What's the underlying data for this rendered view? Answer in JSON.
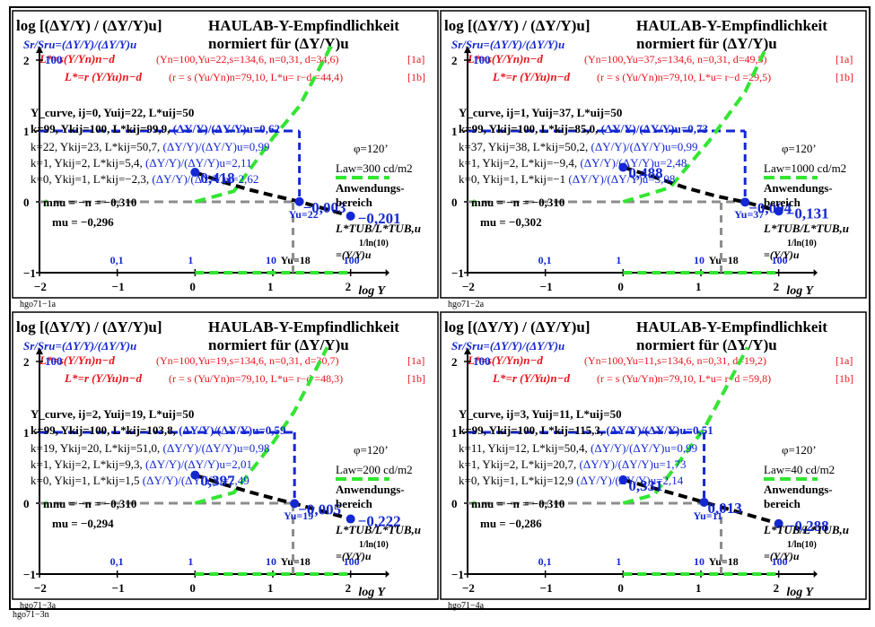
{
  "figure_label": "hgo71−3n",
  "colors": {
    "red": "#e8141c",
    "blue": "#1428d2",
    "green": "#32e632",
    "black": "#000000",
    "grey": "#8c8c8c"
  },
  "common": {
    "ylabel": "log [(ΔY/Y) / (ΔY/Y)u]",
    "title1": "HAULAB-Y-Empfindlichkeit",
    "title2": "normiert für (ΔY/Y)u",
    "sub": "Sr/Sru=(ΔY/Y)/(ΔY/Y)u",
    "eq1": "L*=s(Y/Yn)n−d",
    "eq2": "L*=r (Y/Yu)n−d",
    "tag1": "[1a]",
    "tag2": "[1b]",
    "mnu": "mnu = −n = −0,310",
    "phi": "φ=120’",
    "anw1": "Anwendungs-",
    "anw2": "bereich",
    "tub": "L*TUB/L*TUB,u",
    "tub2": "=(Y/Y)u",
    "tubexp": "1/ln(10)",
    "xlabel": "log Y",
    "k99": "k=99, Ykij=100, L*kij=",
    "ratio": "(ΔY/Y)/(ΔY/Y)u=",
    "yu_hi": "Yu=18",
    "y100": "100",
    "yaxis_100": "100"
  },
  "chart_data": [
    {
      "type": "line",
      "id": "hgo71-1a",
      "label": "hgo71−1a",
      "xlim": [
        -2,
        2.5
      ],
      "ylim": [
        -1,
        2.3
      ],
      "xticks": [
        -2,
        -1,
        0,
        1,
        2
      ],
      "yticks": [
        -1,
        0,
        1,
        2
      ],
      "xtick_labels": [
        "−2",
        "−1",
        "0",
        "1",
        "2"
      ],
      "ytick_labels": [
        "−1",
        "0",
        "1",
        "2"
      ],
      "top_scale": [
        {
          "x": -1,
          "text": "0,1"
        },
        {
          "x": 0,
          "text": "1"
        },
        {
          "x": 1,
          "text": "10"
        },
        {
          "x": 2,
          "text": "100"
        }
      ],
      "params1": "(Yn=100,Yu=22,s=134,6, n=0,31, d=34,6)",
      "params2": "(r = s (Yu/Yn)n=79,10, L*u= r−d =44,4)",
      "header": "Y_curve, ij=0, Yuij=22, L*uij=50",
      "lines": [
        {
          "pre": "k=99, Ykij=100, L*kij=99,9,",
          "val": "0,62"
        },
        {
          "pre": "k=22, Ykij=23, L*kij=50,7,",
          "val": "0,99"
        },
        {
          "pre": "k=1, Ykij=2, L*kij=5,4,",
          "val": "2,11"
        },
        {
          "pre": "k=0, Ykij=1, L*kij=−2,3,",
          "val": "2,62"
        }
      ],
      "lum": "Law=300 cd/m2",
      "mu": "mu = −0,296",
      "yu": "Yu=22",
      "log_yu": 1.342,
      "marker_left": {
        "x": 0.0,
        "y": 0.418,
        "text": "0,418"
      },
      "marker_mid": {
        "x": 1.342,
        "y": 0.003,
        "text": "−0,003"
      },
      "marker_right": {
        "x": 2.0,
        "y": -0.201,
        "text": "−0,201"
      },
      "black_curve": [
        [
          0.0,
          0.418
        ],
        [
          0.3,
          0.3
        ],
        [
          0.7,
          0.17
        ],
        [
          1.0,
          0.09
        ],
        [
          1.342,
          0.003
        ],
        [
          2.0,
          -0.201
        ]
      ],
      "green_curve": [
        [
          0.0,
          0.0
        ],
        [
          0.5,
          0.15
        ],
        [
          1.0,
          0.9
        ],
        [
          1.342,
          1.35
        ],
        [
          1.75,
          2.2
        ]
      ],
      "blue_hline": 1.0
    },
    {
      "type": "line",
      "id": "hgo71-2a",
      "label": "hgo71−2a",
      "xlim": [
        -2,
        2.5
      ],
      "ylim": [
        -1,
        2.3
      ],
      "xticks": [
        -2,
        -1,
        0,
        1,
        2
      ],
      "yticks": [
        -1,
        0,
        1,
        2
      ],
      "xtick_labels": [
        "−2",
        "−1",
        "0",
        "1",
        "2"
      ],
      "ytick_labels": [
        "−1",
        "0",
        "1",
        "2"
      ],
      "top_scale": [
        {
          "x": -1,
          "text": "0,1"
        },
        {
          "x": 0,
          "text": "1"
        },
        {
          "x": 1,
          "text": "10"
        },
        {
          "x": 2,
          "text": "100"
        }
      ],
      "params1": "(Yn=100,Yu=37,s=134,6, n=0,31, d=49,5)",
      "params2": "(r = s (Yu/Yn)n=79,10, L*u= r−d =29,5)",
      "header": "Y_curve, ij=1, Yuij=37, L*uij=50",
      "lines": [
        {
          "pre": "k=99, Ykij=100, L*kij=85,0,",
          "val": "0,73"
        },
        {
          "pre": "k=37, Ykij=38, L*kij=50,2,",
          "val": "0,99"
        },
        {
          "pre": "k=1, Ykij=2, L*kij=−9,4,",
          "val": "2,48"
        },
        {
          "pre": "k=0, Ykij=1, L*kij=−1",
          "val": "3,08"
        }
      ],
      "lum": "Law=1000 cd/m2",
      "mu": "mu = −0,302",
      "yu": "Yu=37",
      "log_yu": 1.568,
      "marker_left": {
        "x": 0.0,
        "y": 0.488,
        "text": "0,488"
      },
      "marker_mid": {
        "x": 1.568,
        "y": -0.004,
        "text": "−0,004"
      },
      "marker_right": {
        "x": 2.0,
        "y": -0.131,
        "text": "−0,131"
      },
      "black_curve": [
        [
          0.0,
          0.488
        ],
        [
          0.4,
          0.35
        ],
        [
          0.8,
          0.2
        ],
        [
          1.2,
          0.08
        ],
        [
          1.568,
          -0.004
        ],
        [
          2.0,
          -0.131
        ]
      ],
      "green_curve": [
        [
          0.0,
          0.0
        ],
        [
          0.6,
          0.2
        ],
        [
          1.1,
          0.85
        ],
        [
          1.568,
          1.55
        ],
        [
          1.85,
          2.2
        ]
      ],
      "blue_hline": 1.0
    },
    {
      "type": "line",
      "id": "hgo71-3a",
      "label": "hgo71−3a",
      "xlim": [
        -2,
        2.5
      ],
      "ylim": [
        -1,
        2.3
      ],
      "xticks": [
        -2,
        -1,
        0,
        1,
        2
      ],
      "yticks": [
        -1,
        0,
        1,
        2
      ],
      "xtick_labels": [
        "−2",
        "−1",
        "0",
        "1",
        "2"
      ],
      "ytick_labels": [
        "−1",
        "0",
        "1",
        "2"
      ],
      "top_scale": [
        {
          "x": -1,
          "text": "0,1"
        },
        {
          "x": 0,
          "text": "1"
        },
        {
          "x": 1,
          "text": "10"
        },
        {
          "x": 2,
          "text": "100"
        }
      ],
      "params1": "(Yn=100,Yu=19,s=134,6, n=0,31, d=30,7)",
      "params2": "(r = s (Yu/Yn)n=79,10, L*u= r−d =48,3)",
      "header": "Y_curve, ij=2, Yuij=19, L*uij=50",
      "lines": [
        {
          "pre": "k=99, Ykij=100, L*kij=103,8,",
          "val": "0,59"
        },
        {
          "pre": "k=19, Ykij=20, L*kij=51,0,",
          "val": "0,98"
        },
        {
          "pre": "k=1, Ykij=2, L*kij=9,3,",
          "val": "2,01"
        },
        {
          "pre": "k=0, Ykij=1, L*kij=1,5",
          "val": "2,49"
        }
      ],
      "lum": "Law=200 cd/m2",
      "mu": "mu = −0,294",
      "yu": "Yu=19",
      "log_yu": 1.279,
      "marker_left": {
        "x": 0.0,
        "y": 0.397,
        "text": "0,397"
      },
      "marker_mid": {
        "x": 1.279,
        "y": -0.005,
        "text": "−0,005"
      },
      "marker_right": {
        "x": 2.0,
        "y": -0.222,
        "text": "−0,222"
      },
      "black_curve": [
        [
          0.0,
          0.397
        ],
        [
          0.3,
          0.29
        ],
        [
          0.7,
          0.16
        ],
        [
          1.0,
          0.07
        ],
        [
          1.279,
          -0.005
        ],
        [
          2.0,
          -0.222
        ]
      ],
      "green_curve": [
        [
          0.0,
          0.0
        ],
        [
          0.5,
          0.15
        ],
        [
          1.0,
          0.85
        ],
        [
          1.279,
          1.3
        ],
        [
          1.7,
          2.2
        ]
      ],
      "blue_hline": 1.0
    },
    {
      "type": "line",
      "id": "hgo71-4a",
      "label": "hgo71−4a",
      "xlim": [
        -2,
        2.5
      ],
      "ylim": [
        -1,
        2.3
      ],
      "xticks": [
        -2,
        -1,
        0,
        1,
        2
      ],
      "yticks": [
        -1,
        0,
        1,
        2
      ],
      "xtick_labels": [
        "−2",
        "−1",
        "0",
        "1",
        "2"
      ],
      "ytick_labels": [
        "−1",
        "0",
        "1",
        "2"
      ],
      "top_scale": [
        {
          "x": -1,
          "text": "0,1"
        },
        {
          "x": 0,
          "text": "1"
        },
        {
          "x": 1,
          "text": "10"
        },
        {
          "x": 2,
          "text": "100"
        }
      ],
      "params1": "(Yn=100,Yu=11,s=134,6, n=0,31, d=19,2)",
      "params2": "(r = s (Yu/Yn)n=79,10, L*u= r−d =59,8)",
      "header": "Y_curve, ij=3, Yuij=11, L*uij=50",
      "lines": [
        {
          "pre": "k=99, Ykij=100, L*kij=115,3,",
          "val": "0,51"
        },
        {
          "pre": "k=11, Ykij=12, L*kij=50,4,",
          "val": "0,99"
        },
        {
          "pre": "k=1, Ykij=2, L*kij=20,7,",
          "val": "1,73"
        },
        {
          "pre": "k=0, Ykij=1, L*kij=12,9",
          "val": "2,14"
        }
      ],
      "lum": "Law=40 cd/m2",
      "mu": "mu = −0,286",
      "yu": "Yu=11",
      "log_yu": 1.041,
      "marker_left": {
        "x": 0.0,
        "y": 0.331,
        "text": "0,331"
      },
      "marker_mid": {
        "x": 1.041,
        "y": 0.013,
        "text": "0,013"
      },
      "marker_right": {
        "x": 2.0,
        "y": -0.288,
        "text": "−0,288"
      },
      "black_curve": [
        [
          0.0,
          0.331
        ],
        [
          0.3,
          0.24
        ],
        [
          0.7,
          0.12
        ],
        [
          1.041,
          0.013
        ],
        [
          1.5,
          -0.13
        ],
        [
          2.0,
          -0.288
        ]
      ],
      "green_curve": [
        [
          0.0,
          0.0
        ],
        [
          0.4,
          0.12
        ],
        [
          0.8,
          0.7
        ],
        [
          1.041,
          1.05
        ],
        [
          1.6,
          2.2
        ]
      ],
      "blue_hline": 1.0
    }
  ]
}
